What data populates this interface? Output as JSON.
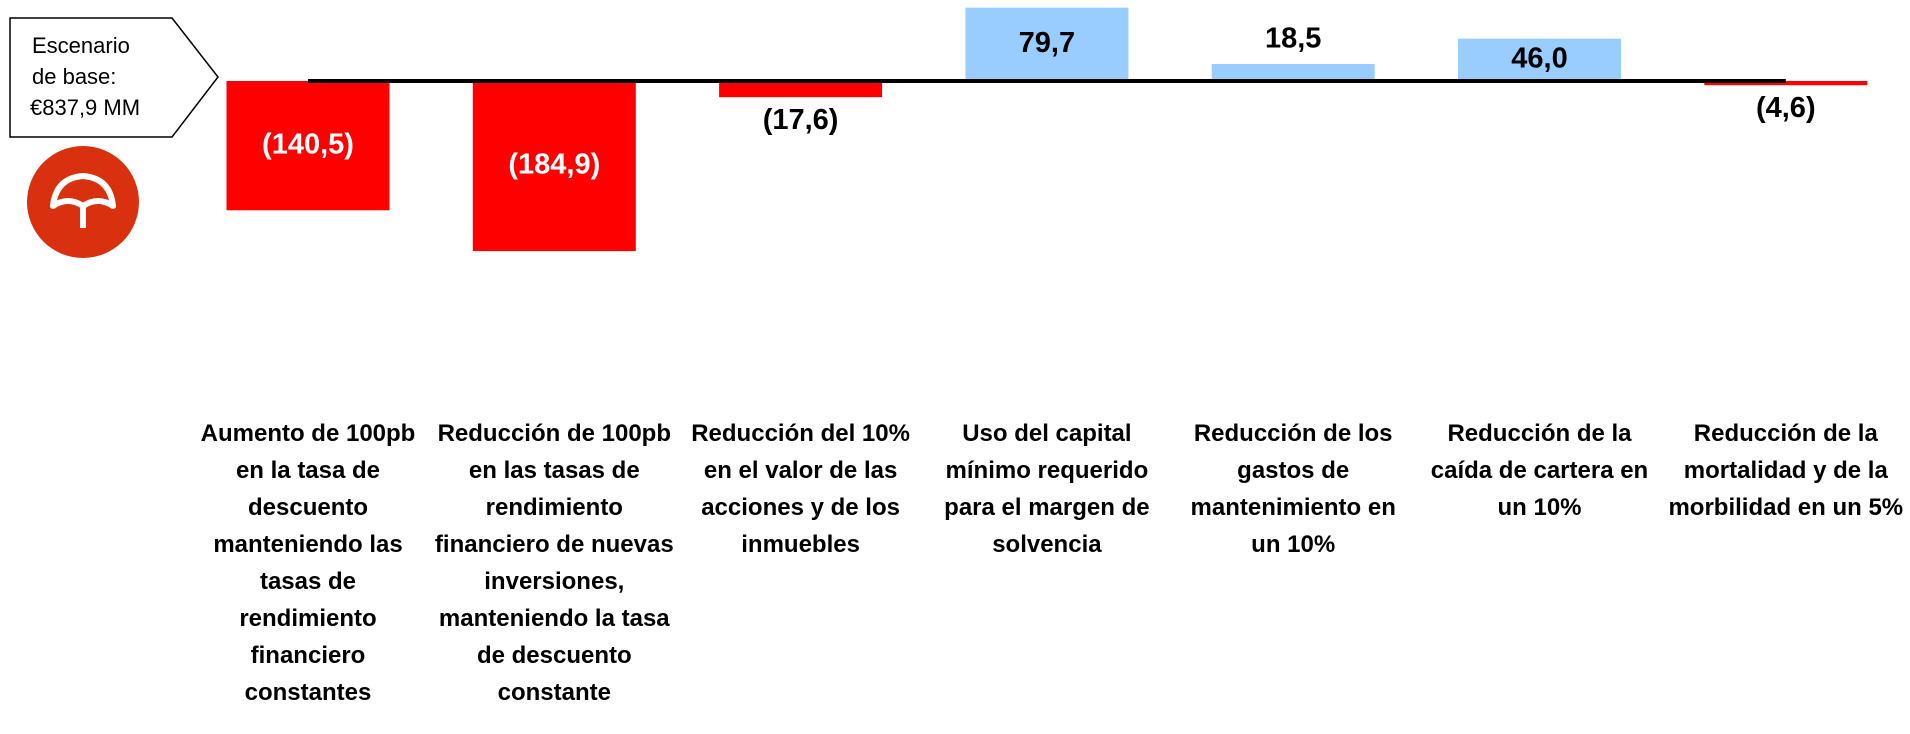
{
  "chart_data": {
    "type": "bar",
    "callout": [
      "Escenario",
      "de base:",
      "€837,9 MM"
    ],
    "categories": [
      "Aumento de 100pb en la tasa de descuento manteniendo las tasas de rendimiento financiero constantes",
      "Reducción de 100pb en las tasas de rendimiento financiero de nuevas inversiones, manteniendo la tasa de descuento constante",
      "Reducción del 10% en el valor de las acciones y de los inmuebles",
      "Uso del capital mínimo requerido para el margen de solvencia",
      "Reducción de los gastos de mantenimiento en un 10%",
      "Reducción de la caída de cartera en un 10%",
      "Reducción de la mortalidad y de la morbilidad en un 5%"
    ],
    "values": [
      -140.5,
      -184.9,
      -17.6,
      79.7,
      18.5,
      46.0,
      -4.6
    ],
    "value_labels": [
      "(140,5)",
      "(184,9)",
      "(17,6)",
      "79,7",
      "18,5",
      "46,0",
      "(4,6)"
    ],
    "positive_color": "#99ccff",
    "negative_color": "#ff0000"
  }
}
